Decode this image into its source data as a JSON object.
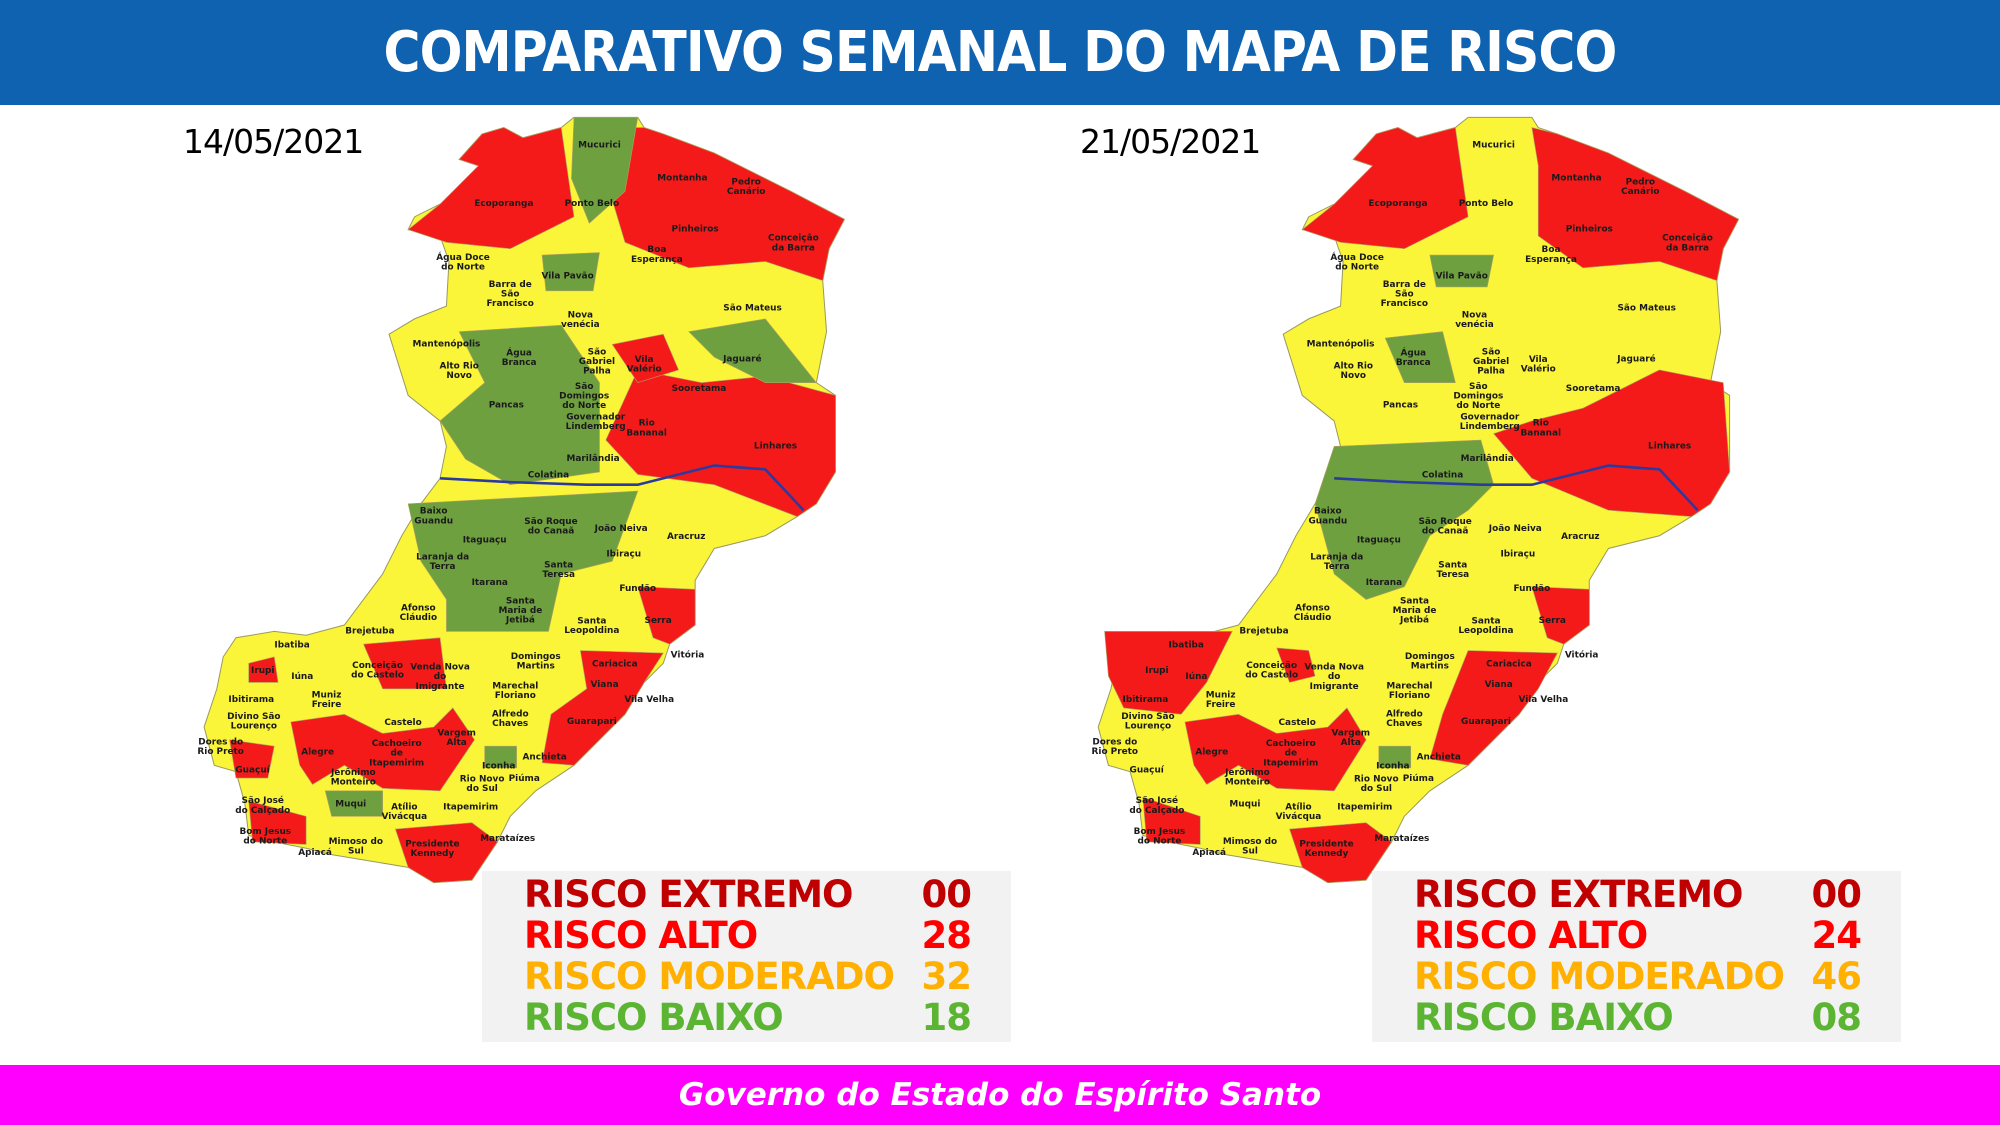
{
  "header": {
    "title": "COMPARATIVO SEMANAL DO MAPA DE RISCO"
  },
  "colors": {
    "header_bg": "#0e62b0",
    "footer_bg": "#ff00ff",
    "risco_extremo": "#c00000",
    "risco_alto": "#ff0000",
    "risco_moderado": "#ffb000",
    "risco_baixo": "#5bb432",
    "map_red": "#f41a1a",
    "map_yellow": "#fbf53a",
    "map_green": "#6fa040",
    "river": "#2b3aa0"
  },
  "maps": [
    {
      "date": "14/05/2021",
      "legend": [
        {
          "label": "RISCO EXTREMO",
          "count": "00"
        },
        {
          "label": "RISCO ALTO",
          "count": "28"
        },
        {
          "label": "RISCO MODERADO",
          "count": "32"
        },
        {
          "label": "RISCO BAIXO",
          "count": "18"
        }
      ]
    },
    {
      "date": "21/05/2021",
      "legend": [
        {
          "label": "RISCO EXTREMO",
          "count": "00"
        },
        {
          "label": "RISCO ALTO",
          "count": "24"
        },
        {
          "label": "RISCO MODERADO",
          "count": "46"
        },
        {
          "label": "RISCO BAIXO",
          "count": "08"
        }
      ]
    }
  ],
  "municipalities": [
    "Mucurici",
    "Montanha",
    "Pedro Canário",
    "Ecoporanga",
    "Ponto Belo",
    "Pinheiros",
    "Conceição da Barra",
    "Boa Esperança",
    "Água Doce do Norte",
    "Vila Pavão",
    "Barra de São Francisco",
    "São Mateus",
    "Nova venécia",
    "Mantenópolis",
    "São Gabriel Palha",
    "Vila Valério",
    "Jaguaré",
    "Água Branca",
    "Alto Rio Novo",
    "Sooretama",
    "São Domingos do Norte",
    "Pancas",
    "Governador Lindemberg",
    "Rio Bananal",
    "Linhares",
    "Marilândia",
    "Colatina",
    "Baixo Guandu",
    "São Roque do Canaã",
    "João Neiva",
    "Itaguaçu",
    "Aracruz",
    "Laranja da Terra",
    "Ibiraçu",
    "Santa Teresa",
    "Itarana",
    "Fundão",
    "Afonso Cláudio",
    "Santa Maria de Jetibá",
    "Santa Leopoldina",
    "Serra",
    "Brejetuba",
    "Ibatiba",
    "Vitória",
    "Domingos Martins",
    "Cariacica",
    "Iúna",
    "Irupi",
    "Conceição do Castelo",
    "Venda Nova do Imigrante",
    "Viana",
    "Ibitirama",
    "Muniz Freire",
    "Marechal Floriano",
    "Vila Velha",
    "Divino São Lourenço",
    "Castelo",
    "Alfredo Chaves",
    "Guarapari",
    "Dores do Rio Preto",
    "Vargem Alta",
    "Alegre",
    "Cachoeiro de Itapemirim",
    "Anchieta",
    "Guaçuí",
    "Iconha",
    "Jerônimo Monteiro",
    "Rio Novo do Sul",
    "Piúma",
    "Muqui",
    "Atílio Vivácqua",
    "Itapemirim",
    "São José do Calçado",
    "Bom Jesus do Norte",
    "Apiacá",
    "Mimoso do Sul",
    "Presidente Kennedy",
    "Marataízes"
  ],
  "footer": {
    "text": "Governo do Estado do Espírito Santo"
  }
}
